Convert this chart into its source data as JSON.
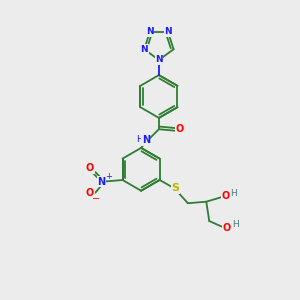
{
  "bg_color": "#ececec",
  "bond_color": "#2e7d32",
  "N_color": "#1a1aff",
  "O_color": "#ff0000",
  "S_color": "#b8b800",
  "lw": 1.3,
  "fig_width": 3.0,
  "fig_height": 3.0,
  "dpi": 100,
  "xlim": [
    0,
    10
  ],
  "ylim": [
    0,
    10
  ]
}
